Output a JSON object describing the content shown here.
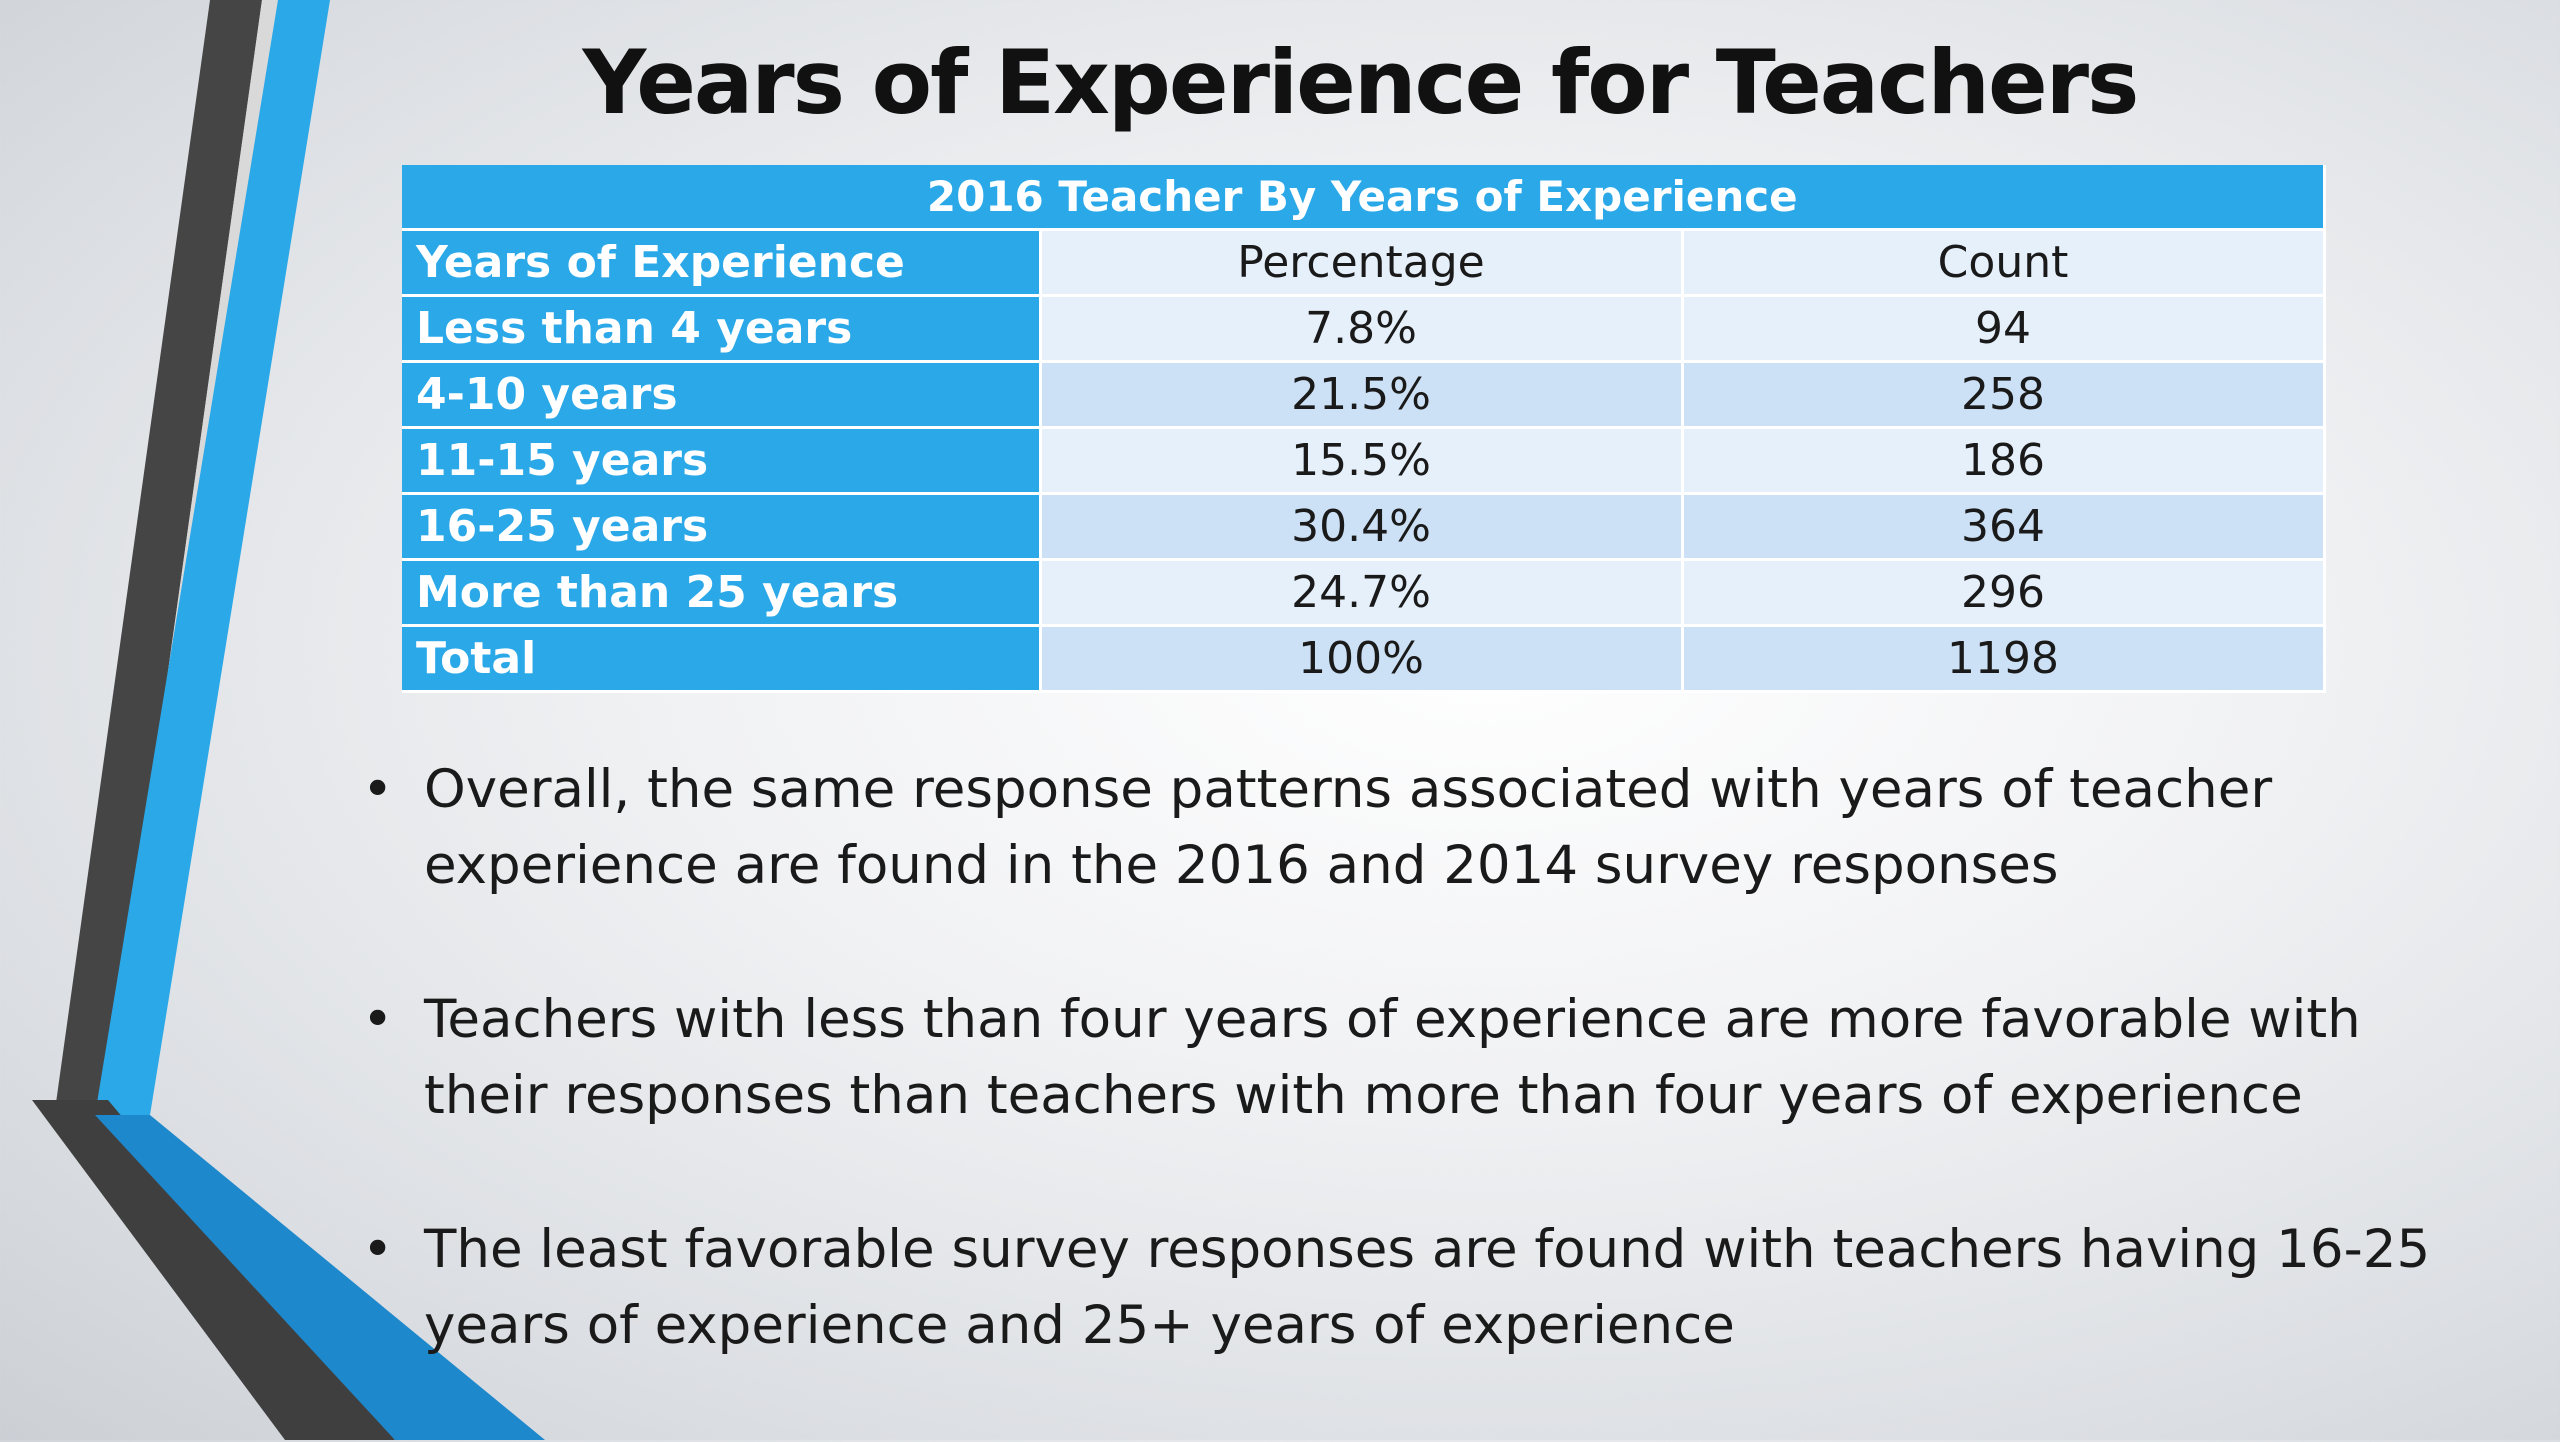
{
  "slide": {
    "title": "Years of Experience for Teachers"
  },
  "table": {
    "caption": "2016  Teacher By Years of Experience",
    "headers": [
      "Years of Experience",
      "Percentage",
      "Count"
    ],
    "rows": [
      {
        "label": "Less than 4 years",
        "percentage": "7.8%",
        "count": "94"
      },
      {
        "label": "4-10 years",
        "percentage": "21.5%",
        "count": "258"
      },
      {
        "label": "11-15 years",
        "percentage": "15.5%",
        "count": "186"
      },
      {
        "label": "16-25 years",
        "percentage": "30.4%",
        "count": "364"
      },
      {
        "label": "More than 25 years",
        "percentage": "24.7%",
        "count": "296"
      },
      {
        "label": "Total",
        "percentage": "100%",
        "count": "1198"
      }
    ]
  },
  "bullets": {
    "marker": "•",
    "items": [
      "Overall, the same response patterns associated with years of teacher experience are found in the 2016 and 2014 survey responses",
      "Teachers with less than four years of experience are more favorable with their responses than teachers with more than four years of experience",
      "The least favorable survey responses are found with teachers having 16-25 years of experience and 25+ years of experience"
    ]
  },
  "colors": {
    "accent_blue": "#2ba8e8",
    "decor_dark_gray": "#454545",
    "decor_blue": "#1e88cc",
    "row_light": "#e6f0fb",
    "row_dark": "#cde1f6"
  }
}
